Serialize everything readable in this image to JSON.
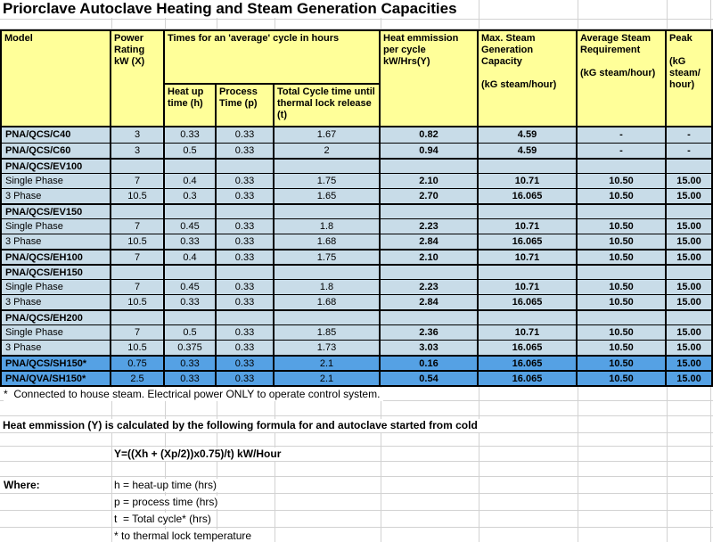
{
  "title": "Priorclave Autoclave Heating and Steam Generation Capacities",
  "colors": {
    "header_fill": "#ffff99",
    "row_light": "#c8dce8",
    "row_dark": "#55a1e4",
    "grid_line": "#d2d2d2",
    "table_border": "#000000"
  },
  "table": {
    "headers": {
      "model": "Model",
      "power": "Power Rating kW (X)",
      "times_group": "Times for an 'average' cycle in hours",
      "heat_up": "Heat up time (h)",
      "process": "Process Time (p)",
      "total_cycle": "Total Cycle time until thermal lock release (t)",
      "heat_emission": "Heat emmission per cycle kW/Hrs(Y)",
      "max_steam": "Max. Steam Generation Capacity",
      "max_steam_unit": "(kG steam/hour)",
      "avg_steam": "Average Steam Requirement",
      "avg_steam_unit": "(kG steam/hour)",
      "peak": "Peak",
      "peak_unit": "(kG steam/ hour)"
    },
    "rows": [
      {
        "model": "PNA/QCS/C40",
        "model_bold": true,
        "group_top": false,
        "shade": "light",
        "values": [
          "3",
          "0.33",
          "0.33",
          "1.67",
          "0.82",
          "4.59",
          "-",
          "-"
        ]
      },
      {
        "model": "PNA/QCS/C60",
        "model_bold": true,
        "group_top": false,
        "shade": "light",
        "values": [
          "3",
          "0.5",
          "0.33",
          "2",
          "0.94",
          "4.59",
          "-",
          "-"
        ]
      },
      {
        "model": "PNA/QCS/EV100",
        "model_bold": true,
        "group_top": true,
        "shade": "light",
        "values": [
          "",
          "",
          "",
          "",
          "",
          "",
          "",
          ""
        ]
      },
      {
        "model": "Single Phase",
        "model_bold": false,
        "group_top": false,
        "shade": "light",
        "values": [
          "7",
          "0.4",
          "0.33",
          "1.75",
          "2.10",
          "10.71",
          "10.50",
          "15.00"
        ]
      },
      {
        "model": "3 Phase",
        "model_bold": false,
        "group_top": false,
        "shade": "light",
        "values": [
          "10.5",
          "0.3",
          "0.33",
          "1.65",
          "2.70",
          "16.065",
          "10.50",
          "15.00"
        ]
      },
      {
        "model": "PNA/QCS/EV150",
        "model_bold": true,
        "group_top": true,
        "shade": "light",
        "values": [
          "",
          "",
          "",
          "",
          "",
          "",
          "",
          ""
        ]
      },
      {
        "model": "Single Phase",
        "model_bold": false,
        "group_top": false,
        "shade": "light",
        "values": [
          "7",
          "0.45",
          "0.33",
          "1.8",
          "2.23",
          "10.71",
          "10.50",
          "15.00"
        ]
      },
      {
        "model": "3 Phase",
        "model_bold": false,
        "group_top": false,
        "shade": "light",
        "values": [
          "10.5",
          "0.33",
          "0.33",
          "1.68",
          "2.84",
          "16.065",
          "10.50",
          "15.00"
        ]
      },
      {
        "model": "PNA/QCS/EH100",
        "model_bold": true,
        "group_top": true,
        "shade": "light",
        "values": [
          "7",
          "0.4",
          "0.33",
          "1.75",
          "2.10",
          "10.71",
          "10.50",
          "15.00"
        ]
      },
      {
        "model": "PNA/QCS/EH150",
        "model_bold": true,
        "group_top": true,
        "shade": "light",
        "values": [
          "",
          "",
          "",
          "",
          "",
          "",
          "",
          ""
        ]
      },
      {
        "model": "Single Phase",
        "model_bold": false,
        "group_top": false,
        "shade": "light",
        "values": [
          "7",
          "0.45",
          "0.33",
          "1.8",
          "2.23",
          "10.71",
          "10.50",
          "15.00"
        ]
      },
      {
        "model": "3 Phase",
        "model_bold": false,
        "group_top": false,
        "shade": "light",
        "values": [
          "10.5",
          "0.33",
          "0.33",
          "1.68",
          "2.84",
          "16.065",
          "10.50",
          "15.00"
        ]
      },
      {
        "model": "PNA/QCS/EH200",
        "model_bold": true,
        "group_top": true,
        "shade": "light",
        "values": [
          "",
          "",
          "",
          "",
          "",
          "",
          "",
          ""
        ]
      },
      {
        "model": "Single Phase",
        "model_bold": false,
        "group_top": false,
        "shade": "light",
        "values": [
          "7",
          "0.5",
          "0.33",
          "1.85",
          "2.36",
          "10.71",
          "10.50",
          "15.00"
        ]
      },
      {
        "model": "3 Phase",
        "model_bold": false,
        "group_top": false,
        "shade": "light",
        "values": [
          "10.5",
          "0.375",
          "0.33",
          "1.73",
          "3.03",
          "16.065",
          "10.50",
          "15.00"
        ]
      },
      {
        "model": "PNA/QCS/SH150*",
        "model_bold": true,
        "group_top": true,
        "shade": "dark",
        "values": [
          "0.75",
          "0.33",
          "0.33",
          "2.1",
          "0.16",
          "16.065",
          "10.50",
          "15.00"
        ]
      },
      {
        "model": "PNA/QVA/SH150*",
        "model_bold": true,
        "group_top": true,
        "shade": "dark",
        "values": [
          "2.5",
          "0.33",
          "0.33",
          "2.1",
          "0.54",
          "16.065",
          "10.50",
          "15.00"
        ]
      }
    ]
  },
  "footer": {
    "steam_note": "*  Connected to house steam. Electrical power ONLY to operate control system.",
    "formula_intro": "Heat emmission (Y) is calculated by the following formula for and autoclave started from cold",
    "formula": "Y=((Xh + (Xp/2))x0.75)/t) kW/Hour",
    "where_label": "Where:",
    "definitions": [
      "h = heat-up time (hrs)",
      "p = process time (hrs)",
      "t  = Total cycle* (hrs)",
      "* to thermal lock temperature"
    ]
  }
}
